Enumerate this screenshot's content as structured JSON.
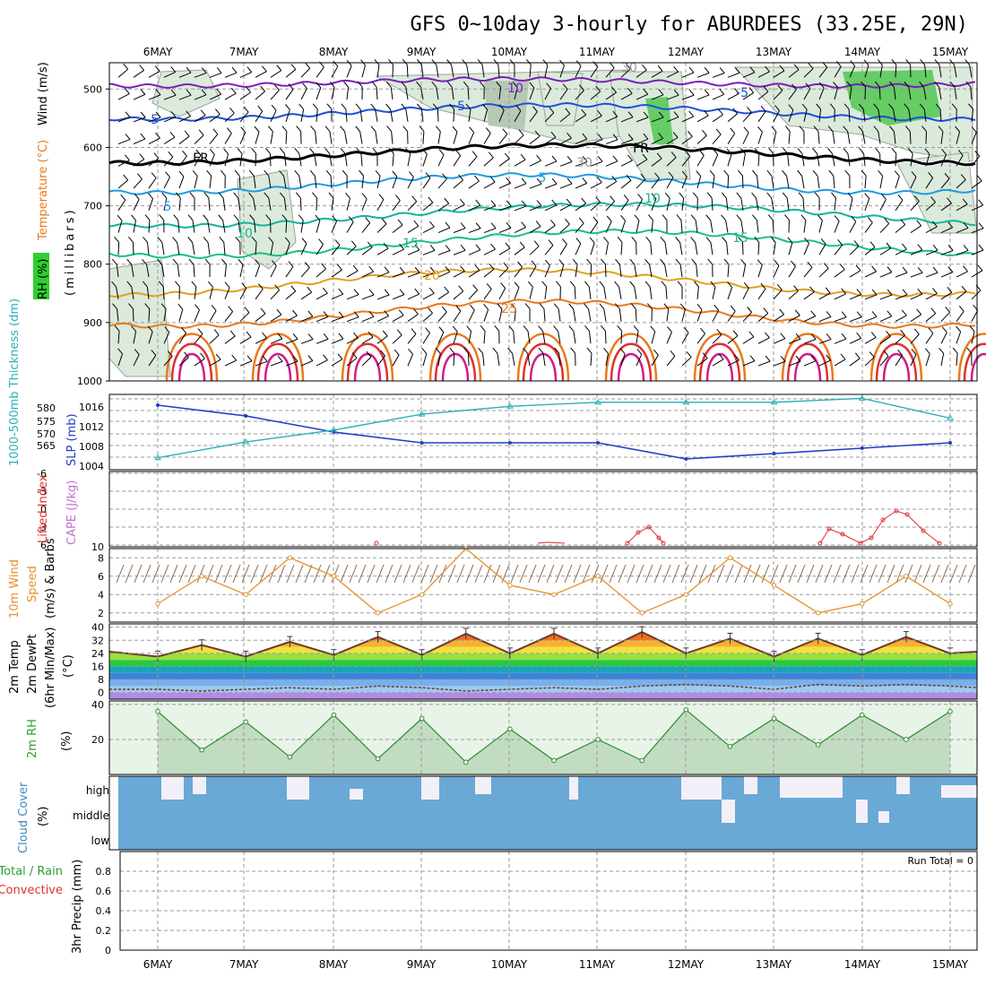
{
  "title": "GFS 0~10day 3-hourly for ABURDEES (33.25E, 29N)",
  "days": [
    "6MAY",
    "7MAY",
    "8MAY",
    "9MAY",
    "10MAY",
    "11MAY",
    "12MAY",
    "13MAY",
    "14MAY",
    "15MAY"
  ],
  "colors": {
    "purple": "#7a1fb8",
    "blue": "#1e4fd8",
    "black": "#000000",
    "cyan": "#1e9be0",
    "teal": "#12b59a",
    "green_teal": "#17c27c",
    "orange": "#e0a020",
    "orange2": "#e87a1a",
    "red": "#e03030",
    "magenta": "#d01c8b",
    "rh_green": "#2e8b2e",
    "slp": "#1f3fc8",
    "thick": "#2ab0b8",
    "cape": "#c070d0",
    "li": "#e03030",
    "wind": "#e6902a",
    "cloud": "#6aa8d6",
    "precip_green": "#2ea02e",
    "precip_red": "#e03030"
  },
  "panels": {
    "upper": {
      "ylabel_rh": "RH (%)",
      "ylabel_temp": "Temperature (°C)",
      "ylabel_wind": "Wind (m/s)",
      "ylabel_mb": "(millibars)",
      "yticks": [
        "500",
        "600",
        "700",
        "800",
        "900",
        "1000"
      ],
      "contour_labels": [
        {
          "text": "10",
          "color": "#7a1fb8"
        },
        {
          "text": "-5",
          "color": "#1e4fd8"
        },
        {
          "text": "-5",
          "color": "#1e4fd8"
        },
        {
          "text": "-5",
          "color": "#1e4fd8"
        },
        {
          "text": "FR",
          "color": "#000000"
        },
        {
          "text": "FR",
          "color": "#000000"
        },
        {
          "text": "5",
          "color": "#1e9be0"
        },
        {
          "text": "5",
          "color": "#1e9be0"
        },
        {
          "text": "10",
          "color": "#12b59a"
        },
        {
          "text": "10",
          "color": "#12b59a"
        },
        {
          "text": "15",
          "color": "#12b59a"
        },
        {
          "text": "15",
          "color": "#12b59a"
        },
        {
          "text": "20",
          "color": "#e0a020"
        },
        {
          "text": "25",
          "color": "#e87a1a"
        },
        {
          "text": "30",
          "color": "#999999"
        },
        {
          "text": "30",
          "color": "#999999"
        }
      ]
    },
    "slp_thickness": {
      "ylabel_thick": "1000-500mb Thickness (dm)",
      "ylabel_slp": "SLP (mb)",
      "thick_ticks": [
        "580",
        "575",
        "570",
        "565"
      ],
      "slp_ticks": [
        "1016",
        "1012",
        "1008",
        "1004"
      ]
    },
    "cape_li": {
      "ylabel_li": "Lifted Index",
      "ylabel_cape": "CAPE (J/kg)",
      "li_ticks": [
        "-6",
        "-3",
        "0",
        "3",
        "6"
      ],
      "cape_ticks": [
        "10"
      ]
    },
    "wind10": {
      "ylabel_a": "10m Wind",
      "ylabel_b": "Speed",
      "ylabel_c": "(m/s) & Barbs",
      "yticks": [
        "8",
        "6",
        "4",
        "2"
      ]
    },
    "temp2m": {
      "ylabel_a": "2m Temp",
      "ylabel_b": "2m DewPt",
      "ylabel_c": "(6hr Min/Max)",
      "ylabel_unit": "(°C)",
      "yticks": [
        "40",
        "32",
        "24",
        "16",
        "8",
        "0"
      ]
    },
    "rh2m": {
      "ylabel": "2m RH",
      "ylabel_unit": "(%)",
      "yticks": [
        "40",
        "20"
      ]
    },
    "cloud": {
      "ylabel": "Cloud Cover",
      "ylabel_unit": "(%)",
      "levels": [
        "high",
        "middle",
        "low"
      ]
    },
    "precip": {
      "ylabel_a": "Total / Rain",
      "ylabel_b": "Convective",
      "ylabel_c": "3hr Precip (mm)",
      "yticks": [
        "0.8",
        "0.6",
        "0.4",
        "0.2",
        "0"
      ],
      "run_total": "Run Total = 0"
    }
  },
  "chart_data": [
    {
      "type": "line",
      "title": "Sea level pressure and 1000-500mb thickness",
      "x": [
        "6MAY",
        "7MAY",
        "8MAY",
        "9MAY",
        "10MAY",
        "11MAY",
        "12MAY",
        "13MAY",
        "14MAY",
        "15MAY"
      ],
      "series": [
        {
          "name": "SLP (mb)",
          "values": [
            1016,
            1014,
            1011,
            1009,
            1009,
            1009,
            1006,
            1007,
            1008,
            1009
          ]
        },
        {
          "name": "1000-500mb Thickness (dm)",
          "values": [
            566,
            570,
            573,
            577,
            579,
            580,
            580,
            580,
            581,
            576
          ]
        }
      ],
      "ylim_slp": [
        1004,
        1018
      ],
      "ylim_thick": [
        563,
        582
      ]
    },
    {
      "type": "line",
      "title": "Lifted Index",
      "x": [
        "11MAY",
        "11.5MAY",
        "13.5MAY",
        "14.5MAY"
      ],
      "series": [
        {
          "name": "Lifted Index",
          "values": [
            6,
            4,
            3,
            0
          ]
        }
      ],
      "ylim": [
        -6,
        6
      ]
    },
    {
      "type": "line",
      "title": "10m Wind Speed",
      "x": [
        "6MAY",
        "6.5MAY",
        "7MAY",
        "7.5MAY",
        "8MAY",
        "8.5MAY",
        "9MAY",
        "9.5MAY",
        "10MAY",
        "10.5MAY",
        "11MAY",
        "11.5MAY",
        "12MAY",
        "12.5MAY",
        "13MAY",
        "13.5MAY",
        "14MAY",
        "14.5MAY",
        "15MAY"
      ],
      "series": [
        {
          "name": "10m Wind Speed (m/s)",
          "values": [
            3,
            6,
            4,
            8,
            6,
            2,
            4,
            9,
            5,
            4,
            6,
            2,
            4,
            8,
            5,
            2,
            3,
            6,
            3
          ]
        }
      ],
      "ylim": [
        1,
        9
      ]
    },
    {
      "type": "area",
      "title": "2m Temperature / Dew Point",
      "x": [
        "6MAY",
        "6.5MAY",
        "7MAY",
        "7.5MAY",
        "8MAY",
        "8.5MAY",
        "9MAY",
        "9.5MAY",
        "10MAY",
        "10.5MAY",
        "11MAY",
        "11.5MAY",
        "12MAY",
        "12.5MAY",
        "13MAY",
        "13.5MAY",
        "14MAY",
        "14.5MAY",
        "15MAY"
      ],
      "series": [
        {
          "name": "2m Temp",
          "values": [
            22,
            29,
            22,
            31,
            23,
            34,
            23,
            36,
            24,
            36,
            24,
            37,
            24,
            33,
            22,
            33,
            23,
            34,
            24
          ]
        },
        {
          "name": "2m DewPt",
          "values": [
            2,
            1,
            2,
            3,
            2,
            4,
            3,
            1,
            2,
            3,
            2,
            4,
            5,
            4,
            2,
            5,
            4,
            5,
            4
          ]
        }
      ],
      "ylim": [
        -4,
        42
      ]
    },
    {
      "type": "area",
      "title": "2m RH",
      "x": [
        "6MAY",
        "6.5MAY",
        "7MAY",
        "7.5MAY",
        "8MAY",
        "8.5MAY",
        "9MAY",
        "9.5MAY",
        "10MAY",
        "10.5MAY",
        "11MAY",
        "11.5MAY",
        "12MAY",
        "12.5MAY",
        "13MAY",
        "13.5MAY",
        "14MAY",
        "14.5MAY",
        "15MAY"
      ],
      "series": [
        {
          "name": "2m RH (%)",
          "values": [
            36,
            14,
            30,
            10,
            34,
            9,
            32,
            7,
            26,
            8,
            20,
            8,
            37,
            16,
            32,
            17,
            34,
            20,
            36
          ]
        }
      ],
      "ylim": [
        0,
        42
      ]
    },
    {
      "type": "bar",
      "title": "3hr Precip",
      "categories": [
        "6MAY",
        "7MAY",
        "8MAY",
        "9MAY",
        "10MAY",
        "11MAY",
        "12MAY",
        "13MAY",
        "14MAY",
        "15MAY"
      ],
      "values": [
        0,
        0,
        0,
        0,
        0,
        0,
        0,
        0,
        0,
        0
      ],
      "ylim": [
        0,
        1
      ]
    }
  ]
}
